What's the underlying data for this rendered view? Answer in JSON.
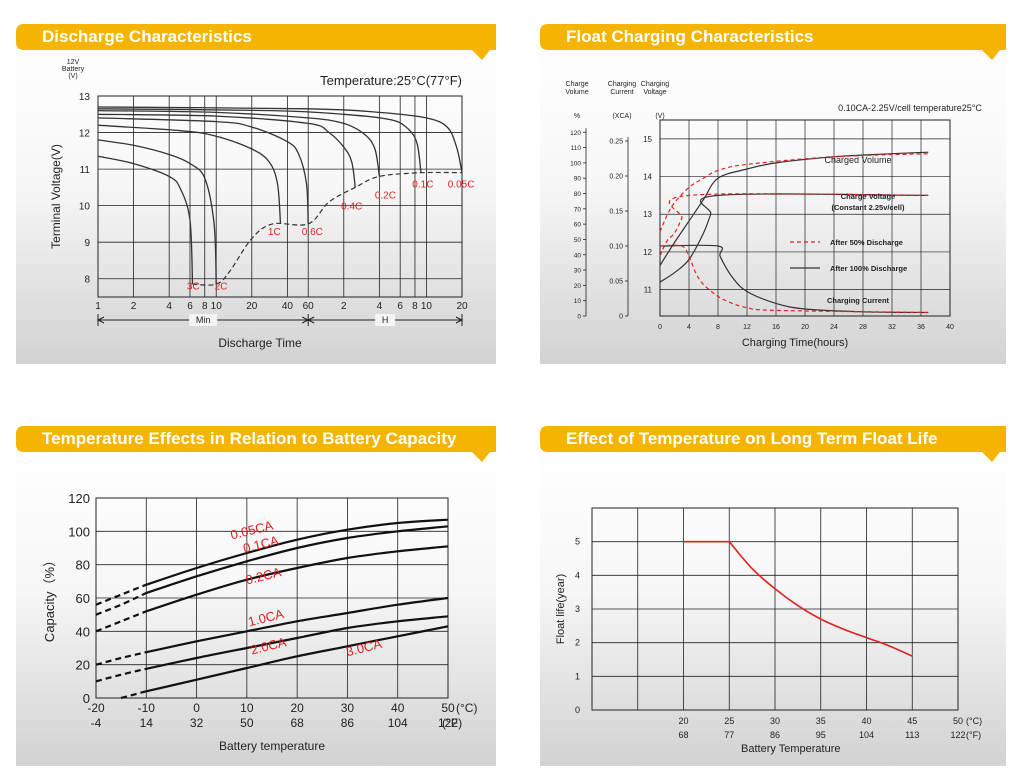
{
  "banners": {
    "discharge": "Discharge Characteristics",
    "float": "Float Charging Characteristics",
    "temperature": "Temperature Effects in Relation to Battery Capacity",
    "life": "Effect of Temperature on Long Term Float Life"
  },
  "colors": {
    "banner": "#f5b400",
    "red_series": "#e02020",
    "curve": "#333333",
    "grid": "#222222"
  },
  "chart_data": [
    {
      "id": "discharge",
      "type": "line",
      "title": "",
      "y_unit_label": [
        "12V",
        "Battery",
        "(V)"
      ],
      "annotation": "Temperature:25°C(77°F)",
      "ylabel": "Terminal Voltage(V)",
      "xlabel": "Discharge Time",
      "ylim": [
        7.5,
        13
      ],
      "y_ticks": [
        8,
        9,
        10,
        11,
        12,
        13
      ],
      "x_tick_labels": [
        "1",
        "2",
        "4",
        "6",
        "8",
        "10",
        "20",
        "40",
        "60",
        "2",
        "4",
        "6",
        "8",
        "10",
        "20"
      ],
      "range_labels": {
        "min": "Min",
        "hour": "H"
      },
      "grid": true,
      "curves": [
        {
          "name": "3C",
          "x": [
            1,
            2,
            4,
            5,
            6,
            6.3
          ],
          "y": [
            11.35,
            11.15,
            10.8,
            10.45,
            9.6,
            7.85
          ]
        },
        {
          "name": "2C",
          "x": [
            1,
            2,
            4,
            6,
            8,
            9.6,
            10
          ],
          "y": [
            11.8,
            11.65,
            11.4,
            11.15,
            10.75,
            9.5,
            7.85
          ]
        },
        {
          "name": "1C",
          "x": [
            1,
            5,
            10,
            20,
            28,
            33,
            35
          ],
          "y": [
            12.2,
            12.05,
            11.9,
            11.55,
            11.2,
            10.6,
            9.5
          ]
        },
        {
          "name": "0.6C",
          "x": [
            1,
            10,
            20,
            40,
            50,
            58,
            60
          ],
          "y": [
            12.4,
            12.3,
            12.15,
            11.75,
            11.4,
            10.6,
            9.5
          ]
        },
        {
          "name": "0.4C",
          "x": [
            1,
            10,
            60,
            90,
            120,
            140,
            150
          ],
          "y": [
            12.5,
            12.45,
            12.25,
            12.0,
            11.6,
            11.2,
            10.5
          ]
        },
        {
          "name": "0.2C",
          "x": [
            1,
            10,
            60,
            120,
            180,
            220,
            240
          ],
          "y": [
            12.6,
            12.55,
            12.4,
            12.25,
            11.95,
            11.55,
            10.8
          ]
        },
        {
          "name": "0.1C",
          "x": [
            1,
            30,
            120,
            300,
            420,
            500,
            540
          ],
          "y": [
            12.65,
            12.6,
            12.5,
            12.35,
            12.1,
            11.7,
            10.9
          ]
        },
        {
          "name": "0.05C",
          "x": [
            1,
            60,
            240,
            600,
            900,
            1080,
            1200
          ],
          "y": [
            12.7,
            12.65,
            12.55,
            12.4,
            12.15,
            11.6,
            10.9
          ]
        }
      ],
      "cutoff_line": {
        "x": [
          6.3,
          10,
          13,
          20,
          30,
          60,
          90,
          150,
          240,
          540,
          1200
        ],
        "y": [
          7.85,
          7.85,
          8.2,
          9.1,
          9.5,
          9.5,
          10.1,
          10.5,
          10.8,
          10.9,
          10.9
        ]
      },
      "labels": [
        {
          "text": "3C",
          "x": 6.4,
          "y": 7.7
        },
        {
          "text": "2C",
          "x": 11,
          "y": 7.7
        },
        {
          "text": "1C",
          "x": 31,
          "y": 9.2
        },
        {
          "text": "0.6C",
          "x": 65,
          "y": 9.2
        },
        {
          "text": "0.4C",
          "x": 140,
          "y": 9.9
        },
        {
          "text": "0.2C",
          "x": 270,
          "y": 10.2
        },
        {
          "text": "0.1C",
          "x": 560,
          "y": 10.5
        },
        {
          "text": "0.05C",
          "x": 1180,
          "y": 10.5
        }
      ]
    },
    {
      "id": "float",
      "type": "line",
      "title": "",
      "axis_headers": {
        "volume": [
          "Charge",
          "Volume"
        ],
        "current": [
          "Charging",
          "Current"
        ],
        "voltage": [
          "Charging",
          "Voltage"
        ],
        "volume_unit": "%",
        "current_unit": "(XCA)",
        "voltage_unit": "(V)"
      },
      "annotation": "0.10CA-2.25V/cell   temperature25°C",
      "xlabel": "Charging Time(hours)",
      "x_ticks": [
        0,
        4,
        8,
        12,
        16,
        20,
        24,
        28,
        32,
        36,
        40
      ],
      "volume_ticks": [
        0,
        10,
        20,
        30,
        40,
        50,
        60,
        70,
        80,
        90,
        100,
        110,
        120
      ],
      "current_ticks": [
        "0",
        "0.05",
        "0.10",
        "0.15",
        "0.20",
        "0.25"
      ],
      "voltage_ticks": [
        11,
        12,
        13,
        14,
        15
      ],
      "grid": true,
      "curve_labels": [
        "Charged Volume",
        "Charge Voltage",
        "(Constant 2.25v/cell)",
        "Charging Current"
      ],
      "legend": [
        {
          "name": "After 50% Discharge",
          "color": "#e02020",
          "dash": true
        },
        {
          "name": "After 100% Discharge",
          "color": "#333333",
          "dash": false
        }
      ],
      "series": [
        {
          "name": "Charged Volume (100%)",
          "x": [
            0,
            2,
            4,
            6,
            8,
            12,
            16,
            24,
            32,
            37
          ],
          "volume": [
            33,
            48,
            62,
            76,
            90,
            96,
            100,
            104,
            106,
            107
          ]
        },
        {
          "name": "Charged Volume (50%)",
          "x": [
            0,
            1,
            2,
            4,
            6,
            8,
            12,
            24,
            37
          ],
          "volume": [
            55,
            66,
            74,
            84,
            90,
            95,
            99,
            104,
            106
          ]
        },
        {
          "name": "Charge Voltage (100%)",
          "x": [
            0,
            2,
            4,
            6,
            7,
            8,
            37
          ],
          "voltage": [
            11.2,
            11.45,
            11.8,
            12.5,
            13.0,
            13.5,
            13.5
          ]
        },
        {
          "name": "Charge Voltage (50%)",
          "x": [
            0,
            1,
            2,
            3,
            4,
            37
          ],
          "voltage": [
            11.9,
            12.3,
            12.5,
            12.9,
            13.5,
            13.5
          ]
        },
        {
          "name": "Charging Current (100%)",
          "x": [
            0,
            8,
            8.3,
            10,
            12,
            16,
            20,
            28,
            37
          ],
          "current": [
            0.1,
            0.1,
            0.085,
            0.055,
            0.035,
            0.018,
            0.01,
            0.006,
            0.005
          ]
        },
        {
          "name": "Charging Current (50%)",
          "x": [
            0,
            3,
            4,
            5,
            6,
            8,
            10,
            12,
            16,
            37
          ],
          "current": [
            0.1,
            0.1,
            0.085,
            0.06,
            0.045,
            0.028,
            0.018,
            0.012,
            0.008,
            0.005
          ]
        }
      ]
    },
    {
      "id": "temperature",
      "type": "line",
      "title": "",
      "ylabel": "Capacity（%）",
      "xlabel": "Battery temperature",
      "x_unit_c": "(°C)",
      "x_unit_f": "(°F)",
      "ylim": [
        0,
        120
      ],
      "xlim": [
        -20,
        50
      ],
      "x_ticks_c": [
        -20,
        -10,
        0,
        10,
        20,
        30,
        40,
        50
      ],
      "x_ticks_f": [
        -4,
        14,
        32,
        50,
        68,
        86,
        104,
        122
      ],
      "y_ticks": [
        0,
        20,
        40,
        60,
        80,
        100,
        120
      ],
      "grid": true,
      "series": [
        {
          "name": "0.05CA",
          "x": [
            -20,
            -15,
            -10,
            0,
            10,
            20,
            30,
            40,
            50
          ],
          "y": [
            56,
            62,
            68,
            78,
            87,
            95,
            101,
            105,
            107
          ]
        },
        {
          "name": "0.1CA",
          "x": [
            -20,
            -15,
            -10,
            0,
            10,
            20,
            30,
            40,
            50
          ],
          "y": [
            50,
            56,
            63,
            73,
            82,
            90,
            96,
            100,
            103
          ]
        },
        {
          "name": "0.2CA",
          "x": [
            -20,
            -15,
            -10,
            0,
            10,
            20,
            30,
            40,
            50
          ],
          "y": [
            40,
            46,
            52,
            62,
            71,
            78,
            84,
            88,
            91
          ]
        },
        {
          "name": "1.0CA",
          "x": [
            -20,
            -15,
            -10,
            0,
            10,
            20,
            30,
            40,
            50
          ],
          "y": [
            20,
            24,
            27.5,
            34,
            40,
            46,
            51,
            56,
            60
          ]
        },
        {
          "name": "2.0CA",
          "x": [
            -20,
            -15,
            -10,
            0,
            10,
            20,
            30,
            40,
            50
          ],
          "y": [
            10,
            14,
            17.5,
            24,
            30,
            36,
            42,
            46,
            49
          ]
        },
        {
          "name": "3.0CA",
          "x": [
            -15,
            -10,
            0,
            10,
            20,
            30,
            40,
            50
          ],
          "y": [
            0,
            4,
            11,
            18,
            25,
            31,
            37,
            43
          ]
        }
      ],
      "labels": [
        {
          "text": "0.05CA",
          "x": 7,
          "y": 95
        },
        {
          "text": "0.1CA",
          "x": 9.5,
          "y": 87
        },
        {
          "text": "0.2CA",
          "x": 10,
          "y": 68
        },
        {
          "text": "1.0CA",
          "x": 10.5,
          "y": 43
        },
        {
          "text": "2.0CA",
          "x": 11,
          "y": 26
        },
        {
          "text": "3.0CA",
          "x": 30,
          "y": 25
        }
      ]
    },
    {
      "id": "life",
      "type": "line",
      "title": "",
      "ylabel": "Float life(year)",
      "xlabel": "Battery Temperature",
      "x_unit_c": "(°C)",
      "x_unit_f": "(°F)",
      "ylim": [
        0,
        6
      ],
      "xlim": [
        10,
        50
      ],
      "x_ticks_c": [
        20,
        25,
        30,
        35,
        40,
        45,
        50
      ],
      "x_ticks_f": [
        68,
        77,
        86,
        95,
        104,
        113,
        122
      ],
      "y_ticks": [
        0,
        1,
        2,
        3,
        4,
        5
      ],
      "grid": true,
      "series": [
        {
          "name": "",
          "x": [
            20,
            25,
            27.5,
            30,
            32.5,
            35,
            37.5,
            40,
            42.5,
            45
          ],
          "y": [
            5,
            5,
            4.2,
            3.6,
            3.1,
            2.7,
            2.4,
            2.15,
            1.9,
            1.6
          ]
        }
      ]
    }
  ]
}
